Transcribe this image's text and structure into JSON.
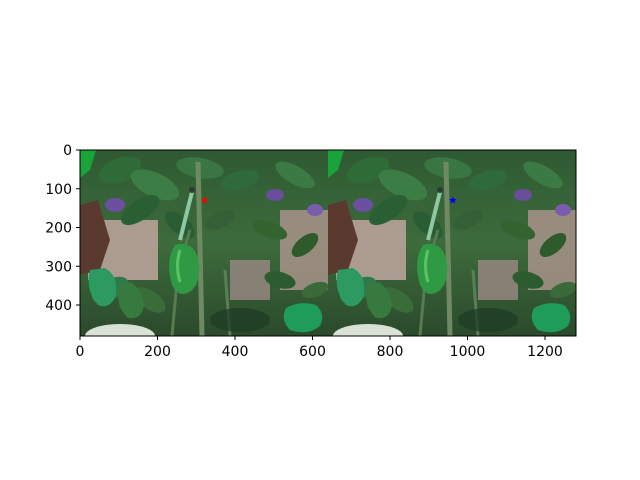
{
  "figure": {
    "background": "#ffffff"
  },
  "chart_data": {
    "type": "image",
    "title": "",
    "xlabel": "",
    "ylabel": "",
    "xlim": [
      0,
      1280
    ],
    "ylim": [
      480,
      0
    ],
    "x_ticks": [
      0,
      200,
      400,
      600,
      800,
      1000,
      1200
    ],
    "y_ticks": [
      0,
      100,
      200,
      300,
      400
    ],
    "grid": false,
    "images": [
      {
        "name": "left",
        "x_range": [
          0,
          640
        ],
        "y_range": [
          0,
          480
        ],
        "content": "plant-with-green-peppers"
      },
      {
        "name": "right",
        "x_range": [
          640,
          1280
        ],
        "y_range": [
          0,
          480
        ],
        "content": "plant-with-green-peppers"
      }
    ],
    "markers": [
      {
        "x": 322,
        "y": 130,
        "symbol": "star",
        "color": "#ff0000"
      },
      {
        "x": 962,
        "y": 130,
        "symbol": "star",
        "color": "#0000ff"
      }
    ]
  }
}
